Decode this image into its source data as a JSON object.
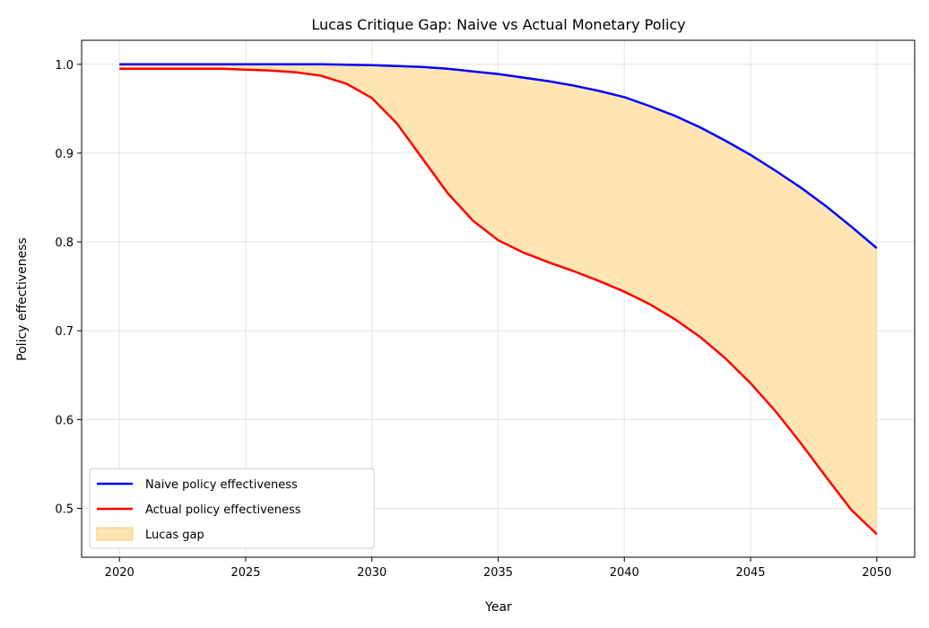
{
  "chart_data": {
    "type": "line",
    "title": "Lucas Critique Gap: Naive vs Actual Monetary Policy",
    "xlabel": "Year",
    "ylabel": "Policy effectiveness",
    "xlim": [
      2018.5,
      2051.5
    ],
    "ylim": [
      0.445,
      1.027
    ],
    "xticks": [
      2020,
      2025,
      2030,
      2035,
      2040,
      2045,
      2050
    ],
    "yticks": [
      0.5,
      0.6,
      0.7,
      0.8,
      0.9,
      1.0
    ],
    "ytick_labels": [
      "0.5",
      "0.6",
      "0.7",
      "0.8",
      "0.9",
      "1.0"
    ],
    "grid": true,
    "legend_position": "lower-left",
    "x": [
      2020,
      2021,
      2022,
      2023,
      2024,
      2025,
      2026,
      2027,
      2028,
      2029,
      2030,
      2031,
      2032,
      2033,
      2034,
      2035,
      2036,
      2037,
      2038,
      2039,
      2040,
      2041,
      2042,
      2043,
      2044,
      2045,
      2046,
      2047,
      2048,
      2049,
      2050
    ],
    "series": [
      {
        "name": "Naive policy effectiveness",
        "color": "#0000ff",
        "values": [
          1.0,
          1.0,
          1.0,
          1.0,
          1.0,
          1.0,
          1.0,
          1.0,
          1.0,
          0.9995,
          0.999,
          0.998,
          0.997,
          0.995,
          0.992,
          0.989,
          0.985,
          0.981,
          0.976,
          0.97,
          0.963,
          0.953,
          0.942,
          0.929,
          0.914,
          0.898,
          0.88,
          0.861,
          0.84,
          0.817,
          0.793
        ]
      },
      {
        "name": "Actual policy effectiveness",
        "color": "#ff0000",
        "values": [
          0.995,
          0.995,
          0.995,
          0.995,
          0.995,
          0.994,
          0.993,
          0.991,
          0.987,
          0.978,
          0.962,
          0.933,
          0.894,
          0.855,
          0.824,
          0.802,
          0.788,
          0.777,
          0.767,
          0.756,
          0.744,
          0.73,
          0.713,
          0.693,
          0.669,
          0.641,
          0.609,
          0.573,
          0.535,
          0.498,
          0.471
        ]
      }
    ],
    "fill": {
      "name": "Lucas gap",
      "color": "#ffe5b4",
      "edge": "#f5c77a",
      "between": [
        "Naive policy effectiveness",
        "Actual policy effectiveness"
      ]
    }
  }
}
